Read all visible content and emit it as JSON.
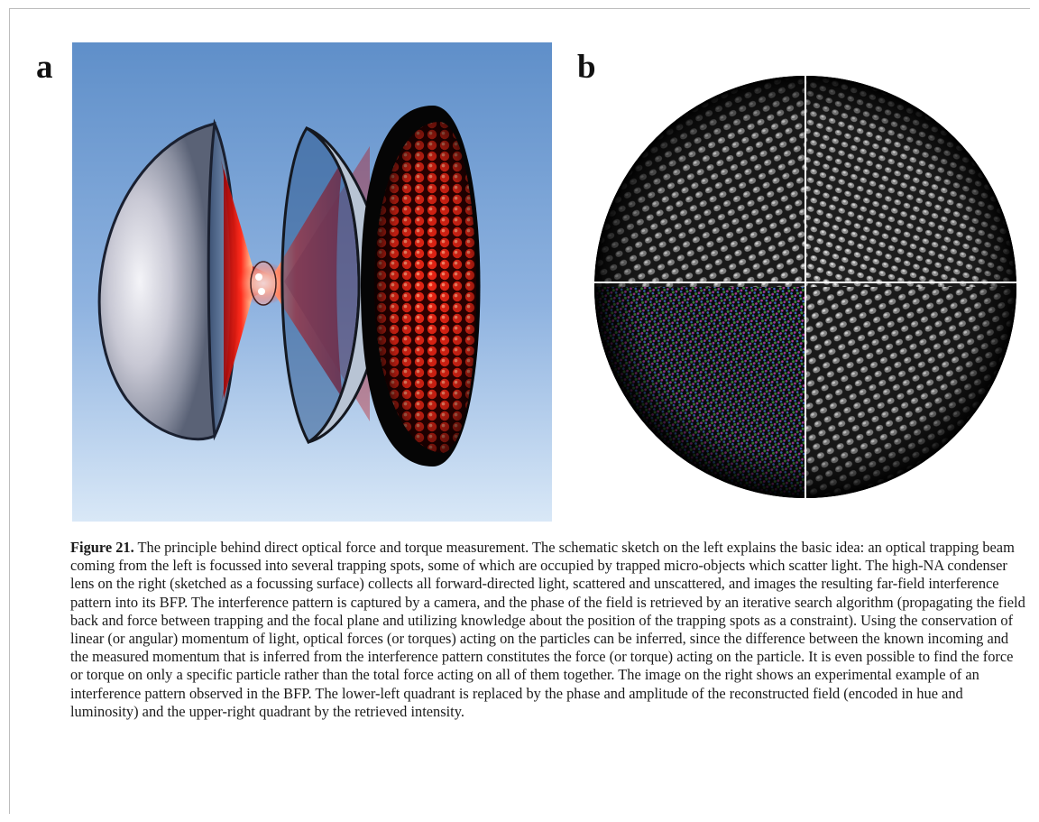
{
  "panels": {
    "a": {
      "label": "a"
    },
    "b": {
      "label": "b"
    }
  },
  "caption": {
    "title": "Figure 21.",
    "text": " The principle behind direct optical force and torque measurement. The schematic sketch on the left explains the basic idea: an optical trapping beam coming from the left is focussed into several trapping spots, some of which are occupied by trapped micro-objects which scatter light. The high-NA condenser lens on the right (sketched as a focussing surface) collects all forward-directed light, scattered and unscattered, and images the resulting far-field interference pattern into its BFP. The interference pattern is captured by a camera, and the phase of the field is retrieved by an iterative search algorithm (propagating the field back and force between trapping and the focal plane and utilizing knowledge about the position of the trapping spots as a constraint). Using the conservation of linear (or angular) momentum of light, optical forces (or torques) acting on the particles can be inferred, since the difference between the known incoming and the measured momentum that is inferred from the interference pattern constitutes the force (or torque) acting on the particle. It is even possible to find the force or torque on only a specific particle rather than the total force acting on all of them together. The image on the right shows an experimental example of an interference pattern observed in the BFP. The lower-left quadrant is replaced by the phase and amplitude of the reconstructed field (encoded in hue and luminosity) and the upper-right quadrant by the retrieved intensity."
  }
}
